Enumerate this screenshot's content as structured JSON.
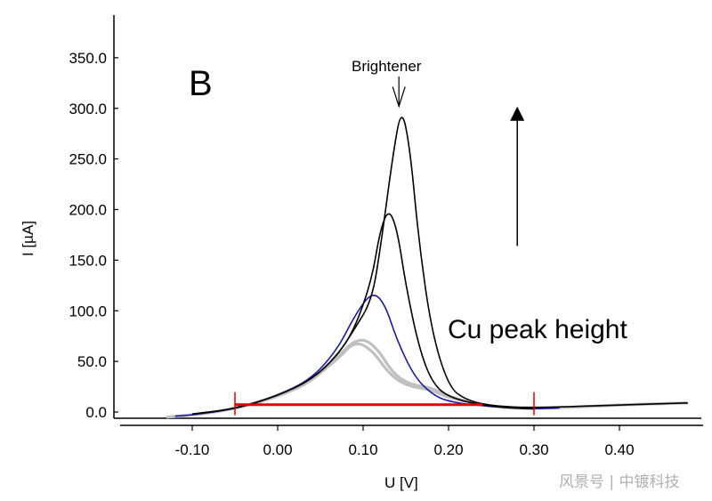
{
  "chart_data": {
    "type": "line",
    "panel_label": "B",
    "xlabel": "U [V]",
    "ylabel": "I [µA]",
    "xlim": [
      -0.18,
      0.48
    ],
    "ylim": [
      -8,
      375
    ],
    "x_ticks": [
      -0.1,
      0.0,
      0.1,
      0.2,
      0.3,
      0.4
    ],
    "x_tick_labels": [
      "-0.10",
      "0.00",
      "0.10",
      "0.20",
      "0.30",
      "0.40"
    ],
    "y_ticks": [
      0,
      50,
      100,
      150,
      200,
      250,
      300,
      350
    ],
    "y_tick_labels": [
      "0.0",
      "50.0",
      "100.0",
      "150.0",
      "200.0",
      "250.0",
      "300.0",
      "350.0"
    ],
    "grid": false,
    "series": [
      {
        "color": "#c0c0c0",
        "points": [
          [
            -0.13,
            -5
          ],
          [
            -0.1,
            -3
          ],
          [
            -0.05,
            3
          ],
          [
            0.0,
            16
          ],
          [
            0.04,
            32
          ],
          [
            0.07,
            52
          ],
          [
            0.09,
            70
          ],
          [
            0.11,
            62
          ],
          [
            0.13,
            38
          ],
          [
            0.15,
            26
          ],
          [
            0.18,
            22
          ],
          [
            0.2,
            14
          ],
          [
            0.25,
            5
          ],
          [
            0.3,
            3
          ],
          [
            0.4,
            7
          ],
          [
            0.48,
            9
          ]
        ]
      },
      {
        "color": "#c0c0c0",
        "points": [
          [
            -0.13,
            -5
          ],
          [
            -0.1,
            -3
          ],
          [
            -0.05,
            3
          ],
          [
            0.0,
            15
          ],
          [
            0.04,
            30
          ],
          [
            0.07,
            55
          ],
          [
            0.095,
            74
          ],
          [
            0.115,
            65
          ],
          [
            0.135,
            38
          ],
          [
            0.155,
            27
          ],
          [
            0.18,
            24
          ],
          [
            0.2,
            15
          ],
          [
            0.25,
            5
          ],
          [
            0.3,
            3
          ],
          [
            0.4,
            7
          ],
          [
            0.48,
            9
          ]
        ]
      },
      {
        "color": "#1a1aa0",
        "points": [
          [
            -0.12,
            -4
          ],
          [
            -0.1,
            -3
          ],
          [
            -0.05,
            3
          ],
          [
            0.0,
            16
          ],
          [
            0.04,
            33
          ],
          [
            0.07,
            62
          ],
          [
            0.09,
            95
          ],
          [
            0.11,
            119
          ],
          [
            0.125,
            108
          ],
          [
            0.14,
            70
          ],
          [
            0.16,
            35
          ],
          [
            0.18,
            18
          ],
          [
            0.2,
            10
          ],
          [
            0.25,
            5
          ],
          [
            0.3,
            3
          ],
          [
            0.33,
            4
          ]
        ]
      },
      {
        "color": "#000000",
        "points": [
          [
            -0.1,
            -2
          ],
          [
            -0.05,
            3
          ],
          [
            0.0,
            16
          ],
          [
            0.04,
            32
          ],
          [
            0.07,
            56
          ],
          [
            0.09,
            82
          ],
          [
            0.11,
            130
          ],
          [
            0.12,
            180
          ],
          [
            0.13,
            201
          ],
          [
            0.14,
            180
          ],
          [
            0.15,
            125
          ],
          [
            0.165,
            65
          ],
          [
            0.18,
            30
          ],
          [
            0.2,
            14
          ],
          [
            0.25,
            5
          ],
          [
            0.3,
            3
          ]
        ]
      },
      {
        "color": "#000000",
        "points": [
          [
            -0.1,
            -2
          ],
          [
            -0.05,
            3
          ],
          [
            0.0,
            16
          ],
          [
            0.04,
            32
          ],
          [
            0.07,
            56
          ],
          [
            0.09,
            82
          ],
          [
            0.11,
            110
          ],
          [
            0.12,
            160
          ],
          [
            0.135,
            255
          ],
          [
            0.145,
            302
          ],
          [
            0.155,
            260
          ],
          [
            0.165,
            170
          ],
          [
            0.18,
            80
          ],
          [
            0.2,
            25
          ],
          [
            0.22,
            12
          ],
          [
            0.25,
            6
          ],
          [
            0.3,
            4
          ],
          [
            0.4,
            7
          ],
          [
            0.48,
            9
          ]
        ]
      }
    ],
    "baseline": {
      "color": "#e00000",
      "x": [
        -0.05,
        0.24
      ],
      "y": 2,
      "markers_x": [
        -0.05,
        0.3
      ]
    },
    "annotations": [
      {
        "text": "Brightener",
        "x": 0.145,
        "y": 302
      },
      {
        "text": "Cu peak height",
        "arrow": {
          "x": 0.27,
          "y_from": 120,
          "y_to": 300
        }
      }
    ]
  },
  "watermark": "风景号 | 中镀科技"
}
